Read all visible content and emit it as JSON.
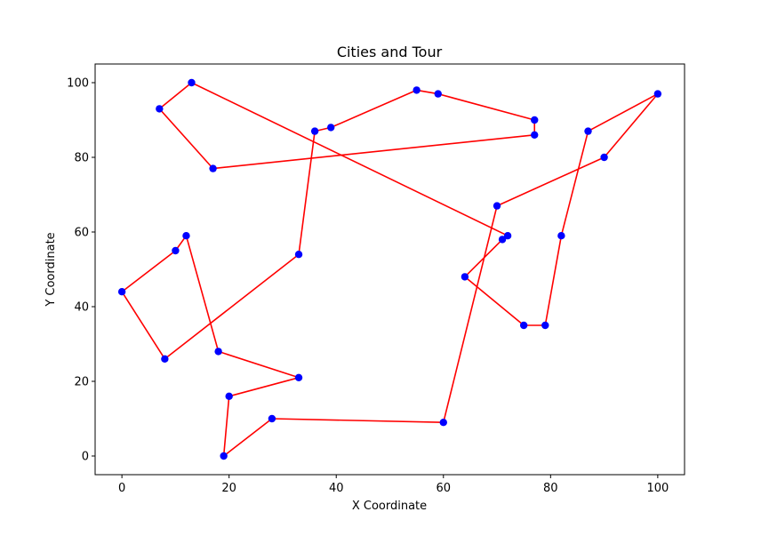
{
  "chart_data": {
    "type": "scatter",
    "title": "Cities and Tour",
    "xlabel": "X Coordinate",
    "ylabel": "Y Coordinate",
    "xlim": [
      -5,
      105
    ],
    "ylim": [
      -5,
      105
    ],
    "xticks": [
      0,
      20,
      40,
      60,
      80,
      100
    ],
    "yticks": [
      0,
      20,
      40,
      60,
      80,
      100
    ],
    "grid": false,
    "point_color": "#0000ff",
    "line_color": "#ff0000",
    "cities": [
      {
        "x": 0,
        "y": 44
      },
      {
        "x": 8,
        "y": 26
      },
      {
        "x": 33,
        "y": 54
      },
      {
        "x": 36,
        "y": 87
      },
      {
        "x": 39,
        "y": 88
      },
      {
        "x": 55,
        "y": 98
      },
      {
        "x": 59,
        "y": 97
      },
      {
        "x": 77,
        "y": 90
      },
      {
        "x": 77,
        "y": 86
      },
      {
        "x": 17,
        "y": 77
      },
      {
        "x": 7,
        "y": 93
      },
      {
        "x": 13,
        "y": 100
      },
      {
        "x": 72,
        "y": 59
      },
      {
        "x": 71,
        "y": 58
      },
      {
        "x": 64,
        "y": 48
      },
      {
        "x": 75,
        "y": 35
      },
      {
        "x": 79,
        "y": 35
      },
      {
        "x": 82,
        "y": 59
      },
      {
        "x": 87,
        "y": 87
      },
      {
        "x": 100,
        "y": 97
      },
      {
        "x": 90,
        "y": 80
      },
      {
        "x": 70,
        "y": 67
      },
      {
        "x": 60,
        "y": 9
      },
      {
        "x": 28,
        "y": 10
      },
      {
        "x": 19,
        "y": 0
      },
      {
        "x": 20,
        "y": 16
      },
      {
        "x": 33,
        "y": 21
      },
      {
        "x": 18,
        "y": 28
      },
      {
        "x": 12,
        "y": 59
      },
      {
        "x": 10,
        "y": 55
      }
    ],
    "tour": [
      {
        "x": 0,
        "y": 44
      },
      {
        "x": 8,
        "y": 26
      },
      {
        "x": 33,
        "y": 54
      },
      {
        "x": 36,
        "y": 87
      },
      {
        "x": 39,
        "y": 88
      },
      {
        "x": 55,
        "y": 98
      },
      {
        "x": 59,
        "y": 97
      },
      {
        "x": 77,
        "y": 90
      },
      {
        "x": 77,
        "y": 86
      },
      {
        "x": 17,
        "y": 77
      },
      {
        "x": 7,
        "y": 93
      },
      {
        "x": 13,
        "y": 100
      },
      {
        "x": 72,
        "y": 59
      },
      {
        "x": 71,
        "y": 58
      },
      {
        "x": 64,
        "y": 48
      },
      {
        "x": 75,
        "y": 35
      },
      {
        "x": 79,
        "y": 35
      },
      {
        "x": 82,
        "y": 59
      },
      {
        "x": 87,
        "y": 87
      },
      {
        "x": 100,
        "y": 97
      },
      {
        "x": 90,
        "y": 80
      },
      {
        "x": 70,
        "y": 67
      },
      {
        "x": 60,
        "y": 9
      },
      {
        "x": 28,
        "y": 10
      },
      {
        "x": 19,
        "y": 0
      },
      {
        "x": 20,
        "y": 16
      },
      {
        "x": 33,
        "y": 21
      },
      {
        "x": 18,
        "y": 28
      },
      {
        "x": 12,
        "y": 59
      },
      {
        "x": 10,
        "y": 55
      },
      {
        "x": 0,
        "y": 44
      }
    ]
  }
}
